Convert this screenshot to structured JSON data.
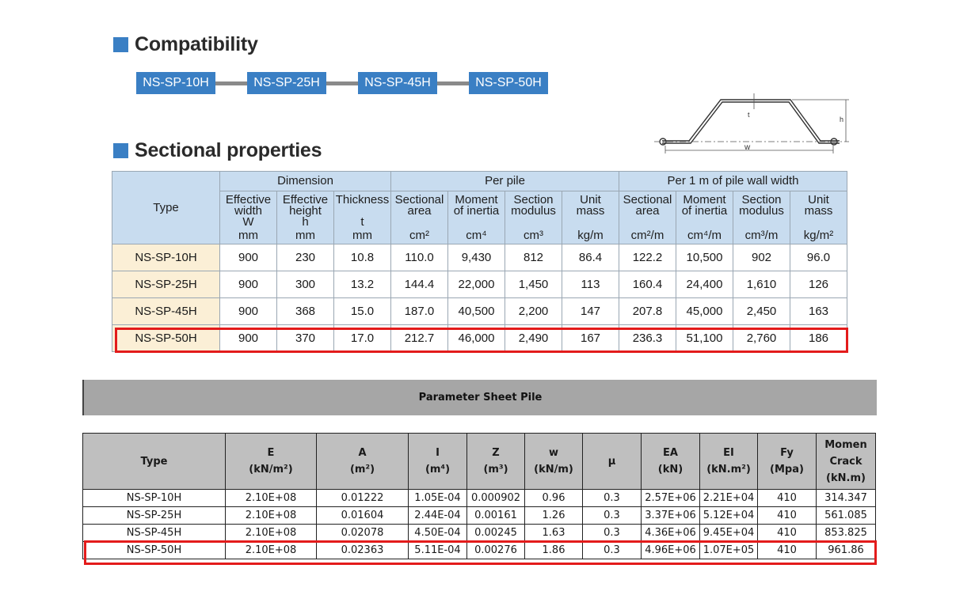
{
  "compat": {
    "title": "Compatibility",
    "chips": [
      "NS-SP-10H",
      "NS-SP-25H",
      "NS-SP-45H",
      "NS-SP-50H"
    ]
  },
  "diagram": {
    "t_label": "t",
    "h_label": "h",
    "w_label": "w"
  },
  "sectional": {
    "title": "Sectional properties",
    "group_headers": [
      "Dimension",
      "Per pile",
      "Per 1 m of pile wall width"
    ],
    "type_header": "Type",
    "columns": [
      {
        "l1": "Effective",
        "l2": "width",
        "l3": "W",
        "unit": "mm"
      },
      {
        "l1": "Effective",
        "l2": "height",
        "l3": "h",
        "unit": "mm"
      },
      {
        "l1": "Thickness",
        "l2": "",
        "l3": "t",
        "unit": "mm"
      },
      {
        "l1": "Sectional",
        "l2": "area",
        "l3": "",
        "unit": "cm²"
      },
      {
        "l1": "Moment",
        "l2": "of inertia",
        "l3": "",
        "unit": "cm⁴"
      },
      {
        "l1": "Section",
        "l2": "modulus",
        "l3": "",
        "unit": "cm³"
      },
      {
        "l1": "Unit",
        "l2": "mass",
        "l3": "",
        "unit": "kg/m"
      },
      {
        "l1": "Sectional",
        "l2": "area",
        "l3": "",
        "unit": "cm²/m"
      },
      {
        "l1": "Moment",
        "l2": "of inertia",
        "l3": "",
        "unit": "cm⁴/m"
      },
      {
        "l1": "Section",
        "l2": "modulus",
        "l3": "",
        "unit": "cm³/m"
      },
      {
        "l1": "Unit",
        "l2": "mass",
        "l3": "",
        "unit": "kg/m²"
      }
    ],
    "rows": [
      [
        "NS-SP-10H",
        "900",
        "230",
        "10.8",
        "110.0",
        "9,430",
        "812",
        "86.4",
        "122.2",
        "10,500",
        "902",
        "96.0"
      ],
      [
        "NS-SP-25H",
        "900",
        "300",
        "13.2",
        "144.4",
        "22,000",
        "1,450",
        "113",
        "160.4",
        "24,400",
        "1,610",
        "126"
      ],
      [
        "NS-SP-45H",
        "900",
        "368",
        "15.0",
        "187.0",
        "40,500",
        "2,200",
        "147",
        "207.8",
        "45,000",
        "2,450",
        "163"
      ],
      [
        "NS-SP-50H",
        "900",
        "370",
        "17.0",
        "212.7",
        "46,000",
        "2,490",
        "167",
        "236.3",
        "51,100",
        "2,760",
        "186"
      ]
    ]
  },
  "parameter": {
    "title": "Parameter Sheet Pile",
    "headers": [
      {
        "l1": "Type",
        "l2": "",
        "l3": ""
      },
      {
        "l1": "E",
        "l2": "(kN/m²)",
        "l3": ""
      },
      {
        "l1": "A",
        "l2": "(m²)",
        "l3": ""
      },
      {
        "l1": "I",
        "l2": "(m⁴)",
        "l3": ""
      },
      {
        "l1": "Z",
        "l2": "(m³)",
        "l3": ""
      },
      {
        "l1": "w",
        "l2": "(kN/m)",
        "l3": ""
      },
      {
        "l1": "μ",
        "l2": "",
        "l3": ""
      },
      {
        "l1": "EA",
        "l2": "(kN)",
        "l3": ""
      },
      {
        "l1": "EI",
        "l2": "(kN.m²)",
        "l3": ""
      },
      {
        "l1": "Fy",
        "l2": "(Mpa)",
        "l3": ""
      },
      {
        "l1": "Momen",
        "l2": "Crack",
        "l3": "(kN.m)"
      }
    ],
    "rows": [
      [
        "NS-SP-10H",
        "2.10E+08",
        "0.01222",
        "1.05E-04",
        "0.000902",
        "0.96",
        "0.3",
        "2.57E+06",
        "2.21E+04",
        "410",
        "314.347"
      ],
      [
        "NS-SP-25H",
        "2.10E+08",
        "0.01604",
        "2.44E-04",
        "0.00161",
        "1.26",
        "0.3",
        "3.37E+06",
        "5.12E+04",
        "410",
        "561.085"
      ],
      [
        "NS-SP-45H",
        "2.10E+08",
        "0.02078",
        "4.50E-04",
        "0.00245",
        "1.63",
        "0.3",
        "4.36E+06",
        "9.45E+04",
        "410",
        "853.825"
      ],
      [
        "NS-SP-50H",
        "2.10E+08",
        "0.02363",
        "5.11E-04",
        "0.00276",
        "1.86",
        "0.3",
        "4.96E+06",
        "1.07E+05",
        "410",
        "961.86"
      ]
    ]
  },
  "colors": {
    "accent": "#3a7fc4",
    "header_fill": "#c8dcef",
    "type_fill": "#fbefd6",
    "highlight": "#e31b1b",
    "banner": "#a6a6a6"
  }
}
